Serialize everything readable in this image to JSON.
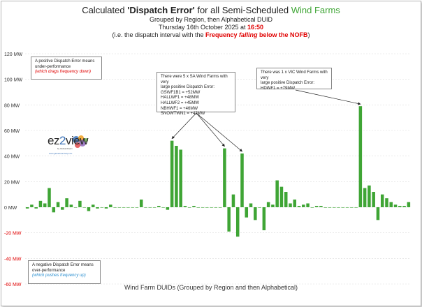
{
  "title": {
    "prefix": "Calculated ",
    "bold": "'Dispatch Error'",
    "middle": " for all Semi-Scheduled ",
    "green": "Wind Farms"
  },
  "subtitle1": "Grouped by Region, then Alphabetical DUID",
  "subtitle2": {
    "prefix": "Thursday 16th October 2025 at ",
    "time": "16:50"
  },
  "subtitle3": {
    "prefix": "(i.e. the dispatch interval with the ",
    "bold1": "Frequency ",
    "italic": "falling",
    "bold2": " below the NOFB",
    "suffix": ")"
  },
  "notes": {
    "positive": {
      "line1": "A positive Dispatch Error means",
      "line2": "under-performance",
      "line3": "(which drags frequency down)"
    },
    "negative": {
      "line1": "A negative Dispatch Error means",
      "line2": "over-performance",
      "line3": "(which pushes frequency up)"
    },
    "sa": {
      "line1": "There were 5 x SA Wind Farms with very",
      "line2": "large positive Dispatch Error:",
      "items": [
        "GSWF1B1 = +52MW",
        "HALLWF1 = +48MW",
        "HALLWF2 = +45MW",
        "NBHWF1 = +46MW",
        "SNOWTWN1 = +42MW"
      ]
    },
    "vic": {
      "line1": "There was 1 x VIC Wind Farms with very",
      "line2": "large positive Dispatch Error:",
      "items": [
        "HDWF1 = +79MW"
      ]
    }
  },
  "logo": {
    "ez": "ez",
    "two": "2",
    "view": "view",
    "by": "by Global-Roam",
    "url": "www.globalroamhelp.info"
  },
  "colors": {
    "bar": "#3fa535",
    "title_green": "#3fa535",
    "axis_red": "#e00000",
    "grid": "#dcdcdc"
  },
  "chart_data": {
    "type": "bar",
    "xlabel": "Wind Farm DUIDs (Grouped by Region and then Alphabetical)",
    "ylabel": "",
    "ylim": [
      -60,
      120
    ],
    "yticks": [
      -60,
      -40,
      -20,
      0,
      20,
      40,
      60,
      80,
      100,
      120
    ],
    "yticklabels": [
      "-60 MW",
      "-40 MW",
      "-20 MW",
      "0 MW",
      "20 MW",
      "40 MW",
      "60 MW",
      "80 MW",
      "100 MW",
      "120 MW"
    ],
    "grid": true,
    "values": [
      -1,
      2,
      -1,
      5,
      3,
      15,
      -4,
      4,
      -2,
      7,
      2,
      0,
      5,
      0,
      -3,
      2,
      -1,
      0,
      -1,
      2,
      0,
      0,
      0,
      0,
      0,
      0,
      6,
      0,
      0,
      0,
      1,
      0,
      -2,
      52,
      48,
      45,
      1,
      0,
      1,
      0,
      0,
      0,
      0,
      0,
      0,
      46,
      -19,
      10,
      -23,
      42,
      -8,
      3,
      -10,
      0,
      -18,
      4,
      2,
      21,
      16,
      12,
      3,
      6,
      1,
      2,
      3,
      0,
      1,
      1,
      0,
      0,
      0,
      0,
      0,
      0,
      0,
      0,
      79,
      15,
      17,
      12,
      -10,
      10,
      7,
      4,
      2,
      1,
      1,
      4
    ]
  }
}
